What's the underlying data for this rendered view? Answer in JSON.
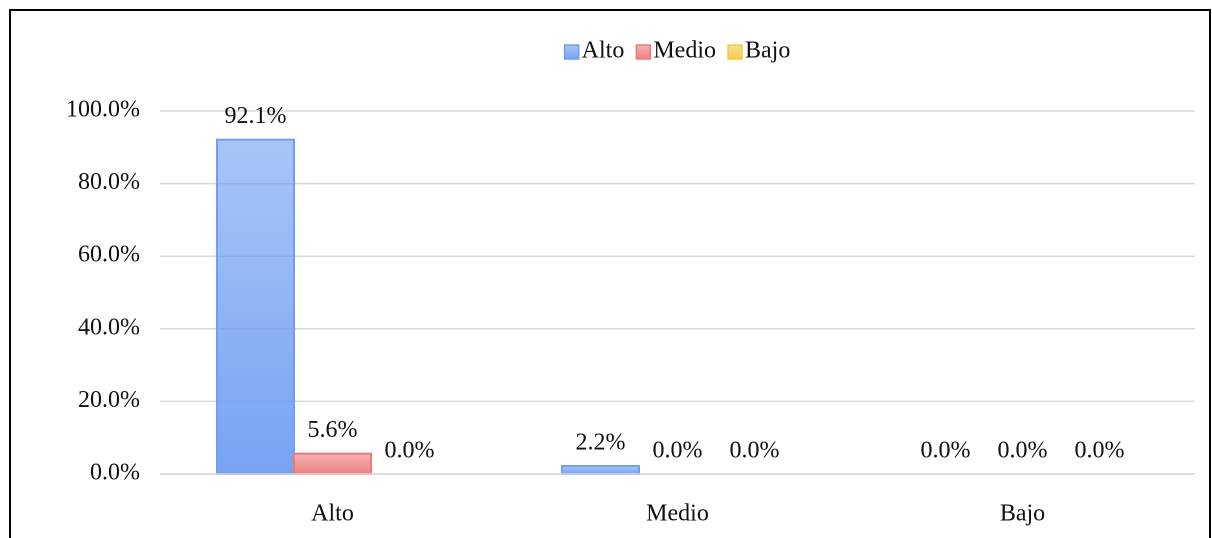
{
  "chart_data": {
    "type": "bar",
    "categories": [
      "Alto",
      "Medio",
      "Bajo"
    ],
    "series": [
      {
        "name": "Alto",
        "color": "#6f9ef2",
        "values": [
          92.1,
          2.2,
          0.0
        ],
        "value_labels": [
          "92.1%",
          "2.2%",
          "0.0%"
        ]
      },
      {
        "name": "Medio",
        "color": "#ee7b7b",
        "values": [
          5.6,
          0.0,
          0.0
        ],
        "value_labels": [
          "5.6%",
          "0.0%",
          "0.0%"
        ]
      },
      {
        "name": "Bajo",
        "color": "#f7c948",
        "values": [
          0.0,
          0.0,
          0.0
        ],
        "value_labels": [
          "0.0%",
          "0.0%",
          "0.0%"
        ]
      }
    ],
    "ylim": [
      0,
      100
    ],
    "yticks": [
      {
        "value": 0,
        "label": "0.0%"
      },
      {
        "value": 20,
        "label": "20.0%"
      },
      {
        "value": 40,
        "label": "40.0%"
      },
      {
        "value": 60,
        "label": "60.0%"
      },
      {
        "value": 80,
        "label": "80.0%"
      },
      {
        "value": 100,
        "label": "100.0%"
      }
    ],
    "grid": true,
    "legend": "top"
  }
}
